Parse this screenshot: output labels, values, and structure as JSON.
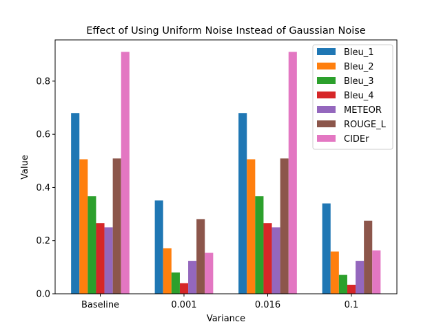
{
  "chart_data": {
    "type": "bar",
    "title": "Effect of Using Uniform Noise Instead of Gaussian Noise",
    "xlabel": "Variance",
    "ylabel": "Value",
    "categories": [
      "Baseline",
      "0.001",
      "0.016",
      "0.1"
    ],
    "ylim": [
      0,
      0.955
    ],
    "yticks": [
      "0.0",
      "0.2",
      "0.4",
      "0.6",
      "0.8"
    ],
    "grid": false,
    "legend_position": "top-right",
    "series": [
      {
        "name": "Bleu_1",
        "color": "#1f77b4",
        "values": [
          0.68,
          0.351,
          0.68,
          0.34
        ]
      },
      {
        "name": "Bleu_2",
        "color": "#ff7f0e",
        "values": [
          0.506,
          0.171,
          0.506,
          0.159
        ]
      },
      {
        "name": "Bleu_3",
        "color": "#2ca02c",
        "values": [
          0.367,
          0.08,
          0.367,
          0.071
        ]
      },
      {
        "name": "Bleu_4",
        "color": "#d62728",
        "values": [
          0.266,
          0.04,
          0.266,
          0.034
        ]
      },
      {
        "name": "METEOR",
        "color": "#9467bd",
        "values": [
          0.25,
          0.124,
          0.25,
          0.124
        ]
      },
      {
        "name": "ROUGE_L",
        "color": "#8c564b",
        "values": [
          0.509,
          0.281,
          0.509,
          0.275
        ]
      },
      {
        "name": "CIDEr",
        "color": "#e377c2",
        "values": [
          0.91,
          0.154,
          0.91,
          0.163
        ]
      }
    ]
  }
}
